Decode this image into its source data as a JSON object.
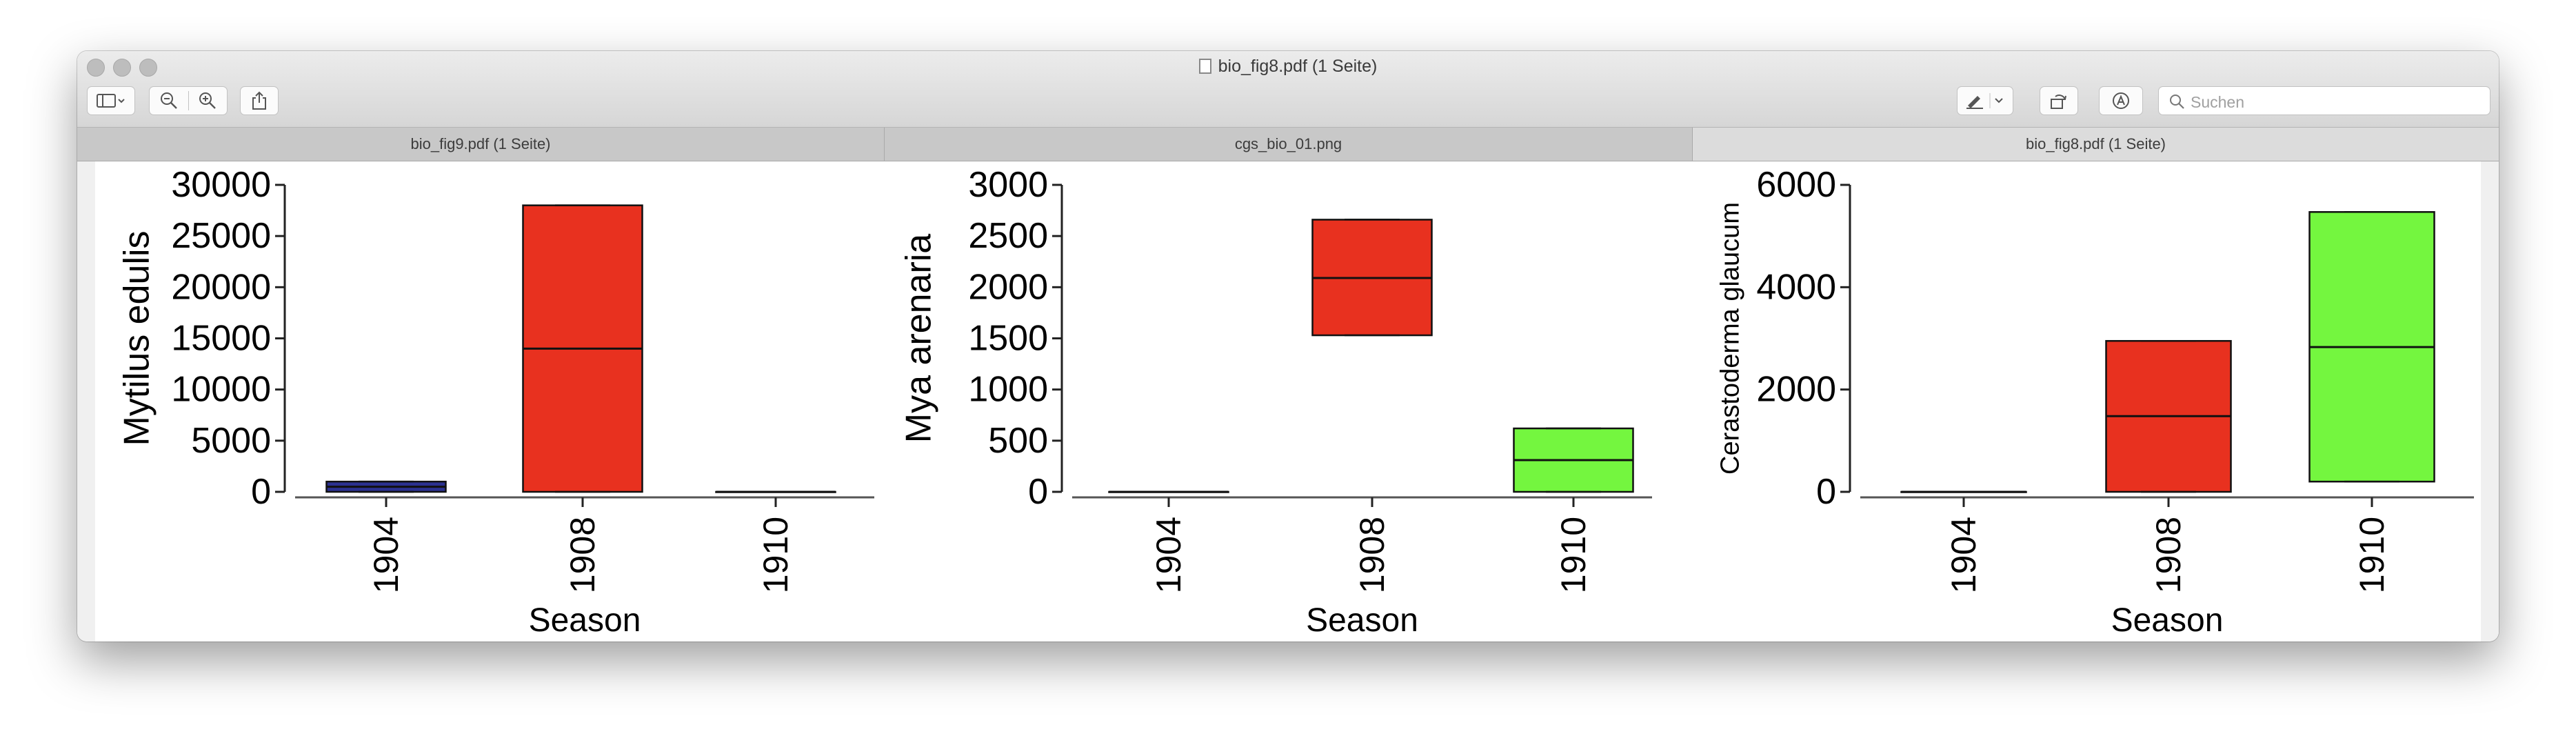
{
  "window": {
    "title": "bio_fig8.pdf (1 Seite)"
  },
  "toolbar": {
    "search_placeholder": "Suchen"
  },
  "tabs": [
    {
      "label": "bio_fig9.pdf (1 Seite)",
      "active": false
    },
    {
      "label": "cgs_bio_01.png",
      "active": false
    },
    {
      "label": "bio_fig8.pdf (1 Seite)",
      "active": true
    }
  ],
  "chart_data": [
    {
      "type": "box",
      "title": "",
      "xlabel": "Season",
      "ylabel": "Mytilus edulis",
      "ylim": [
        0,
        30000
      ],
      "yticks": [
        0,
        5000,
        10000,
        15000,
        20000,
        25000,
        30000
      ],
      "categories": [
        "1904",
        "1908",
        "1910"
      ],
      "boxes": [
        {
          "category": "1904",
          "min": 0,
          "q1": 0,
          "median": 500,
          "q3": 1000,
          "max": 1000,
          "color": "#2b3190"
        },
        {
          "category": "1908",
          "min": 0,
          "q1": 0,
          "median": 14000,
          "q3": 28000,
          "max": 28000,
          "color": "#e8311f"
        },
        {
          "category": "1910",
          "min": 0,
          "q1": 0,
          "median": 0,
          "q3": 0,
          "max": 0,
          "color": "#74f63f"
        }
      ]
    },
    {
      "type": "box",
      "title": "",
      "xlabel": "Season",
      "ylabel": "Mya arenaria",
      "ylim": [
        0,
        3000
      ],
      "yticks": [
        0,
        500,
        1000,
        1500,
        2000,
        2500,
        3000
      ],
      "categories": [
        "1904",
        "1908",
        "1910"
      ],
      "boxes": [
        {
          "category": "1904",
          "min": 0,
          "q1": 0,
          "median": 0,
          "q3": 0,
          "max": 0,
          "color": "#2b3190"
        },
        {
          "category": "1908",
          "min": 1530,
          "q1": 1530,
          "median": 2090,
          "q3": 2660,
          "max": 2660,
          "color": "#e8311f"
        },
        {
          "category": "1910",
          "min": 0,
          "q1": 0,
          "median": 310,
          "q3": 620,
          "max": 620,
          "color": "#74f63f"
        }
      ]
    },
    {
      "type": "box",
      "title": "",
      "xlabel": "Season",
      "ylabel": "Cerastoderma glaucum",
      "ylim": [
        0,
        6000
      ],
      "yticks": [
        0,
        2000,
        4000,
        6000
      ],
      "categories": [
        "1904",
        "1908",
        "1910"
      ],
      "boxes": [
        {
          "category": "1904",
          "min": 0,
          "q1": 0,
          "median": 0,
          "q3": 0,
          "max": 0,
          "color": "#2b3190"
        },
        {
          "category": "1908",
          "min": 0,
          "q1": 0,
          "median": 1480,
          "q3": 2950,
          "max": 2950,
          "color": "#e8311f"
        },
        {
          "category": "1910",
          "min": 200,
          "q1": 200,
          "median": 2830,
          "q3": 5470,
          "max": 5470,
          "color": "#74f63f"
        }
      ]
    }
  ]
}
